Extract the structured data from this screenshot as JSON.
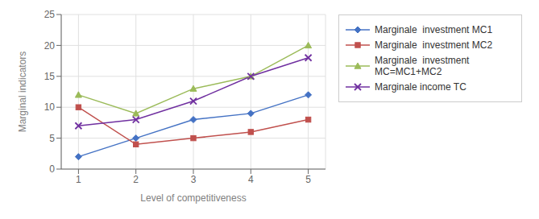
{
  "chart_data": {
    "type": "line",
    "x": [
      1,
      2,
      3,
      4,
      5
    ],
    "series": [
      {
        "name": "Marginale  investment MC1",
        "color": "#4472C4",
        "marker": "diamond",
        "values": [
          2,
          5,
          8,
          9,
          12
        ]
      },
      {
        "name": "Marginale  investment MC2",
        "color": "#C0504D",
        "marker": "square",
        "values": [
          10,
          4,
          5,
          6,
          8
        ]
      },
      {
        "name": "Marginale  investment\nMC=MC1+MC2",
        "color": "#9BBB59",
        "marker": "triangle",
        "values": [
          12,
          9,
          13,
          15,
          20
        ]
      },
      {
        "name": "Marginale income TC",
        "color": "#7030A0",
        "marker": "x",
        "values": [
          7,
          8,
          11,
          15,
          18
        ]
      }
    ],
    "xlabel": "Level of competitiveness",
    "ylabel": "Marginal indicators",
    "xlim": [
      0.7,
      5.3
    ],
    "xticks": [
      1,
      2,
      3,
      4,
      5
    ],
    "ylim": [
      0,
      25
    ],
    "yticks": [
      0,
      5,
      10,
      15,
      20,
      25
    ],
    "grid": true,
    "legend": "right"
  }
}
